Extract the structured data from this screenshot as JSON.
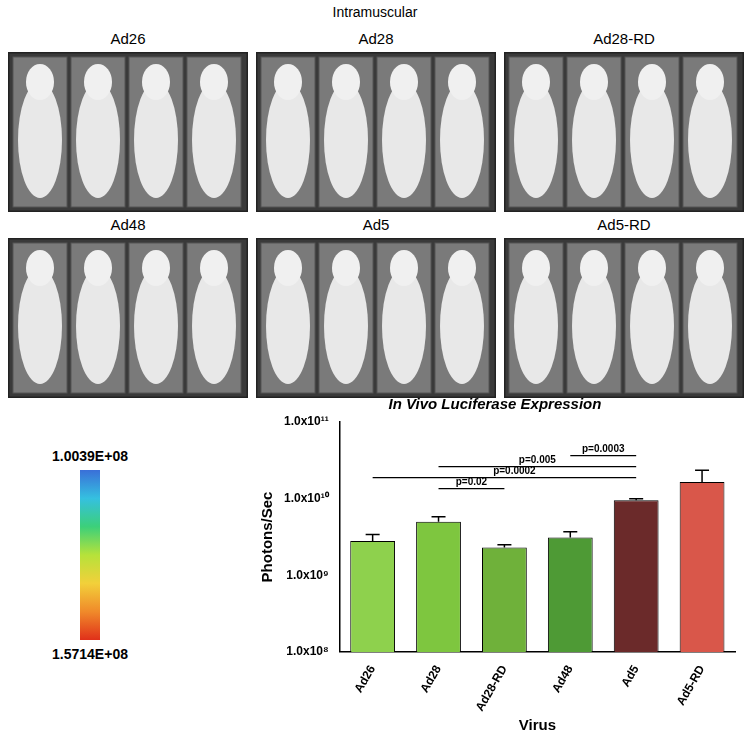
{
  "header": "Intramuscular",
  "panels": [
    "Ad26",
    "Ad28",
    "Ad28-RD",
    "Ad48",
    "Ad5",
    "Ad5-RD"
  ],
  "color_bar": {
    "range": [
      100390000,
      157140000
    ],
    "ticks": [
      {
        "value": 100390000,
        "label": "1.0039E+08"
      },
      {
        "value": 157140000,
        "label": "1.5714E+08"
      }
    ]
  },
  "chart_data": {
    "type": "bar",
    "title": "In Vivo Luciferase Expression",
    "x_label": "Virus",
    "y_label": "Photons/Sec",
    "categories": [
      "Ad26",
      "Ad28",
      "Ad28-RD",
      "Ad48",
      "Ad5",
      "Ad5-RD"
    ],
    "values": [
      2800000000,
      5000000000,
      2300000000,
      3100000000,
      9500000000,
      16500000000
    ],
    "errors": [
      600000000,
      800000000,
      200000000,
      600000000,
      500000000,
      7000000000
    ],
    "colors": [
      "#8ed14d",
      "#7ec63f",
      "#6fb13a",
      "#4e9a35",
      "#6b2a2a",
      "#d9574a"
    ],
    "log": "y",
    "ylim": [
      100000000,
      100000000000
    ],
    "yticks": [
      {
        "value": 100000000,
        "label": "1.0x10⁸"
      },
      {
        "value": 1000000000,
        "label": "1.0x10⁹"
      },
      {
        "value": 10000000000,
        "label": "1.0x10¹⁰"
      },
      {
        "value": 100000000000,
        "label": "1.0x10¹¹"
      }
    ],
    "annotations": [
      {
        "from": "Ad28",
        "to": "Ad28-RD",
        "label": "p=0.02"
      },
      {
        "from": "Ad26",
        "to": "Ad5",
        "label": "p=0.0002"
      },
      {
        "from": "Ad28",
        "to": "Ad5",
        "label": "p=0.005"
      },
      {
        "from": "Ad48",
        "to": "Ad5",
        "label": "p=0.0003"
      }
    ]
  }
}
